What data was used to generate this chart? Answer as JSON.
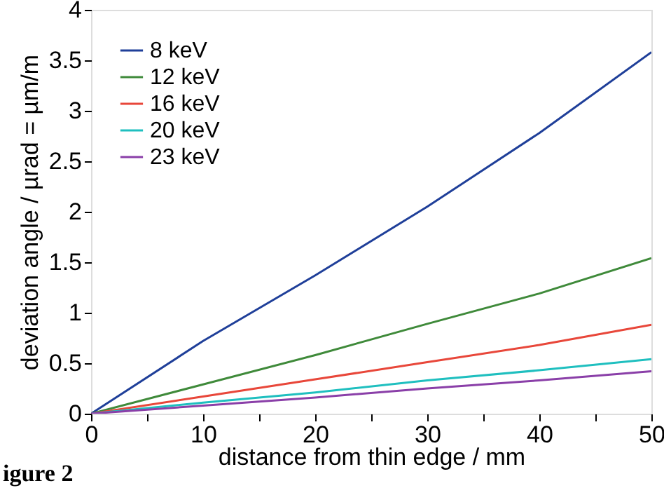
{
  "chart_data": {
    "type": "line",
    "xlabel": "distance from thin edge / mm",
    "ylabel": "deviation angle / µrad = µm/m",
    "x": [
      0,
      10,
      20,
      30,
      40,
      50
    ],
    "series": [
      {
        "name": "8 keV",
        "color": "#1f3f99",
        "values": [
          0,
          0.72,
          1.37,
          2.05,
          2.78,
          3.58
        ]
      },
      {
        "name": "12 keV",
        "color": "#3f8a3a",
        "values": [
          0,
          0.29,
          0.58,
          0.89,
          1.19,
          1.54
        ]
      },
      {
        "name": "16 keV",
        "color": "#e8473a",
        "values": [
          0,
          0.17,
          0.34,
          0.51,
          0.68,
          0.88
        ]
      },
      {
        "name": "20 keV",
        "color": "#1fbfbf",
        "values": [
          0,
          0.11,
          0.21,
          0.33,
          0.43,
          0.54
        ]
      },
      {
        "name": "23 keV",
        "color": "#8a3fa8",
        "values": [
          0,
          0.08,
          0.16,
          0.25,
          0.33,
          0.42
        ]
      }
    ],
    "xlim": [
      0,
      50
    ],
    "ylim": [
      0,
      4
    ],
    "xticks": [
      0,
      {
        "value": 5,
        "label": null
      },
      10,
      {
        "value": 15,
        "label": null
      },
      20,
      {
        "value": 25,
        "label": null
      },
      30,
      {
        "value": 35,
        "label": null
      },
      40,
      {
        "value": 45,
        "label": null
      },
      50
    ],
    "yticks": [
      0,
      0.5,
      1,
      1.5,
      2,
      2.5,
      3,
      3.5,
      4
    ],
    "grid": false,
    "legend": "top left",
    "marker": "none",
    "line_style": "solid",
    "annotations": [
      "igure 2"
    ]
  }
}
